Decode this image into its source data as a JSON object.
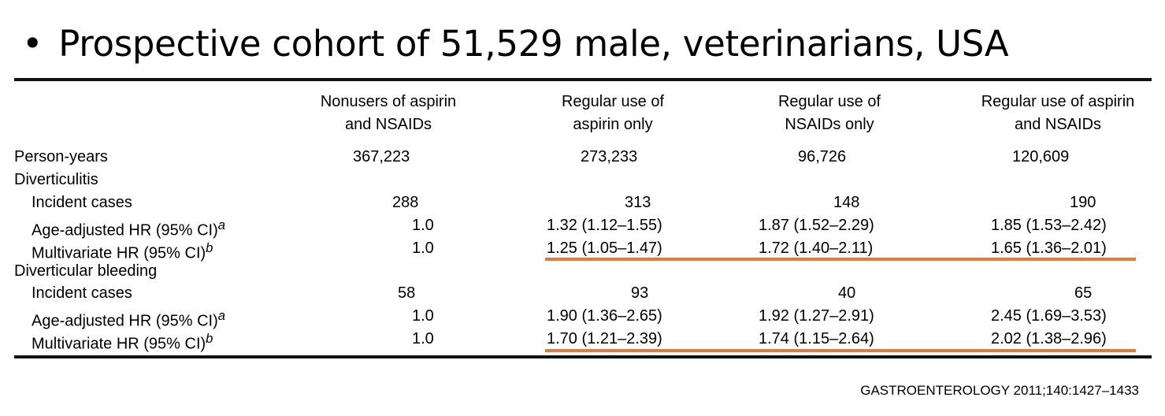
{
  "bullet": "Prospective cohort of 51,529 male, veterinarians, USA",
  "citation": "GASTROENTEROLOGY 2011;140:1427–1433",
  "table": {
    "columns": [
      {
        "line1": "Nonusers of aspirin",
        "line2": "and NSAIDs"
      },
      {
        "line1": "Regular use of",
        "line2": "aspirin only"
      },
      {
        "line1": "Regular use of",
        "line2": "NSAIDs only"
      },
      {
        "line1": "Regular use of aspirin",
        "line2": "and NSAIDs"
      }
    ],
    "person_years": {
      "label": "Person-years",
      "values": [
        "367,223",
        "273,233",
        "96,726",
        "120,609"
      ]
    },
    "diverticulitis": {
      "label": "Diverticulitis",
      "rows": [
        {
          "label": "Incident cases",
          "sup": "",
          "values": [
            "288",
            "313",
            "148",
            "190"
          ]
        },
        {
          "label": "Age-adjusted HR (95% CI)",
          "sup": "a",
          "values": [
            "1.0",
            "1.32 (1.12–1.55)",
            "1.87 (1.52–2.29)",
            "1.85 (1.53–2.42)"
          ]
        },
        {
          "label": "Multivariate HR (95% CI)",
          "sup": "b",
          "values": [
            "1.0",
            "1.25 (1.05–1.47)",
            "1.72 (1.40–2.11)",
            "1.65 (1.36–2.01)"
          ]
        }
      ]
    },
    "bleeding": {
      "label": "Diverticular bleeding",
      "rows": [
        {
          "label": "Incident cases",
          "sup": "",
          "values": [
            "58",
            "93",
            "40",
            "65"
          ]
        },
        {
          "label": "Age-adjusted HR (95% CI)",
          "sup": "a",
          "values": [
            "1.0",
            "1.90 (1.36–2.65)",
            "1.92 (1.27–2.91)",
            "2.45 (1.69–3.53)"
          ]
        },
        {
          "label": "Multivariate HR (95% CI)",
          "sup": "b",
          "values": [
            "1.0",
            "1.70 (1.21–2.39)",
            "1.74 (1.15–2.64)",
            "2.02 (1.38–2.96)"
          ]
        }
      ]
    },
    "highlight_color": "#e07b39"
  }
}
